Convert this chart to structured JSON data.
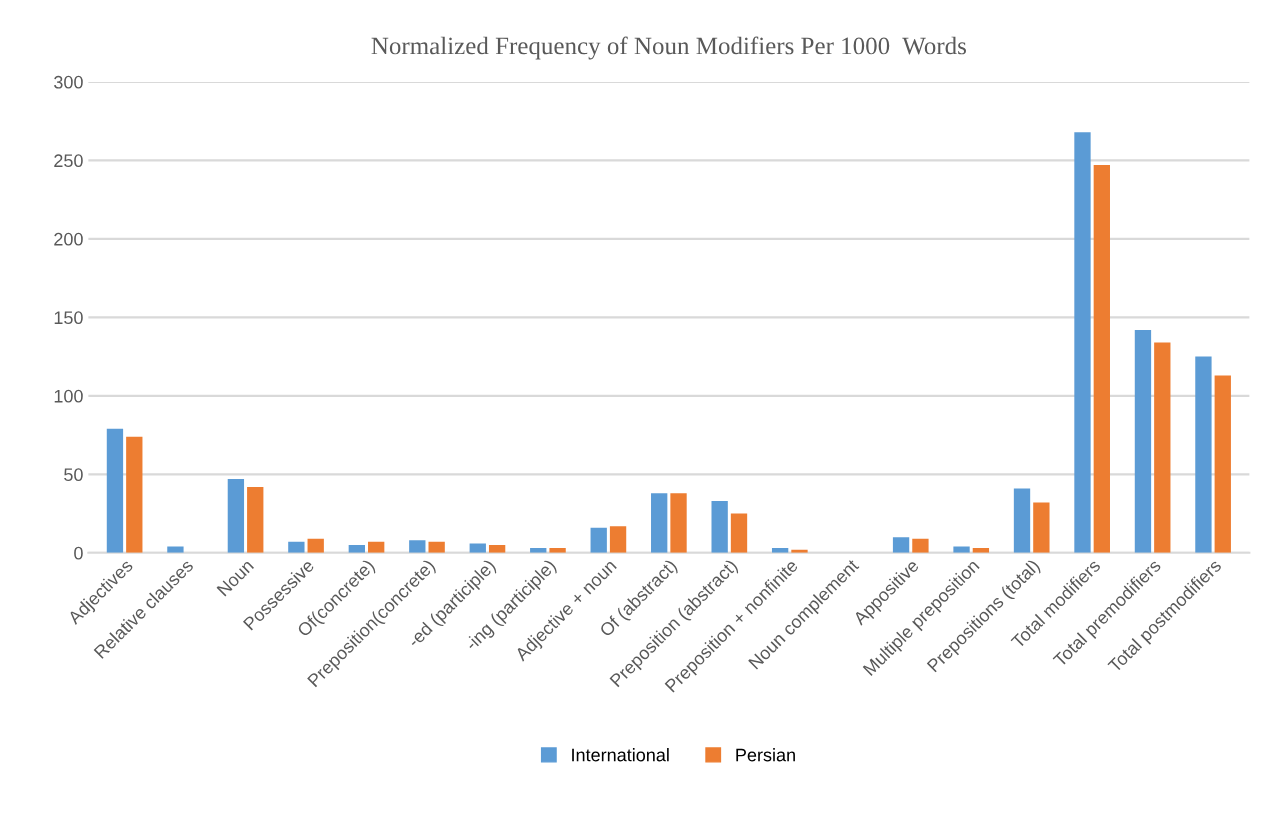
{
  "chart_data": {
    "type": "bar",
    "title": "Normalized Frequency of Noun Modifiers Per 1000  Words",
    "categories": [
      "Adjectives",
      "Relative clauses",
      "Noun",
      "Possessive",
      "Of(concrete)",
      "Preposition(concrete)",
      "-ed (participle)",
      "-ing (participle)",
      "Adjective + noun",
      "Of (abstract)",
      "Preposition (abstract)",
      "Preposition + nonfinite",
      "Noun complement",
      "Appositive",
      "Multiple preposition",
      "Prepositions (total)",
      "Total modifiers",
      "Total premodifiers",
      "Total postmodifiers"
    ],
    "series": [
      {
        "name": "International",
        "color": "#5b9bd5",
        "values": [
          79,
          4,
          47,
          7,
          5,
          8,
          6,
          3,
          16,
          38,
          33,
          3,
          0,
          10,
          4,
          41,
          268,
          142,
          125
        ]
      },
      {
        "name": "Persian",
        "color": "#ed7d31",
        "values": [
          74,
          0,
          42,
          9,
          7,
          7,
          5,
          3,
          17,
          38,
          25,
          2,
          0,
          9,
          3,
          32,
          247,
          134,
          113
        ]
      }
    ],
    "ylim": [
      0,
      300
    ],
    "yticks": [
      0,
      50,
      100,
      150,
      200,
      250,
      300
    ],
    "grid": "y",
    "legend": "bottom"
  }
}
